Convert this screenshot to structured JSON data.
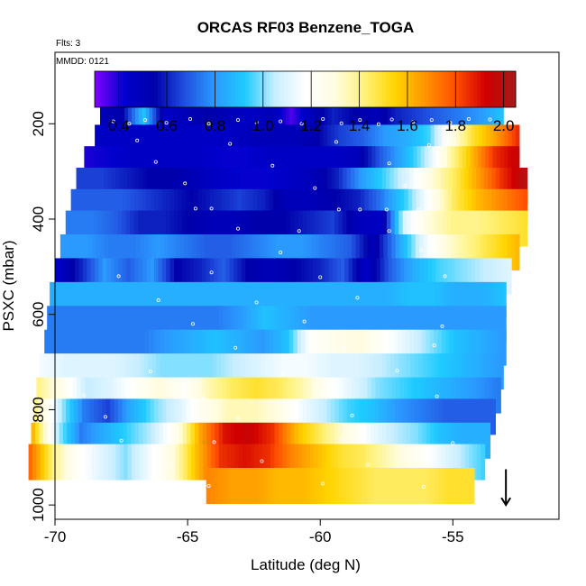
{
  "chart_data": {
    "type": "heatmap",
    "title": "ORCAS RF03 Benzene_TOGA",
    "subtitle_flts": "Flts: 3",
    "subtitle_date": "MMDD: 0121",
    "xlabel": "Latitude (deg N)",
    "ylabel": "PSXC (mbar)",
    "xlim": [
      -70,
      -51
    ],
    "ylim": [
      1030,
      50
    ],
    "x_ticks": [
      -70,
      -65,
      -60,
      -55
    ],
    "y_ticks": [
      200,
      400,
      600,
      800,
      1000
    ],
    "colorbar": {
      "range": [
        0.3,
        2.05
      ],
      "ticks": [
        0.4,
        0.6,
        0.8,
        1.0,
        1.2,
        1.4,
        1.6,
        1.8,
        2.0
      ],
      "tick_labels": [
        "0.4",
        "0.6",
        "0.8",
        "1.0",
        "1.2",
        "1.4",
        "1.6",
        "1.8",
        "2.0"
      ],
      "colors": [
        "#8000ff",
        "#0000cc",
        "#0000aa",
        "#2050e0",
        "#2b9aff",
        "#1ecbff",
        "#c8eeff",
        "#ffffff",
        "#fffce0",
        "#fff176",
        "#ffd400",
        "#ff9400",
        "#ff4f00",
        "#d10000",
        "#a41a1a"
      ]
    },
    "rows": [
      {
        "p": 190,
        "x0": -68.3,
        "x1": -53.1,
        "values": [
          0.5,
          0.55,
          0.9,
          0.45,
          0.5,
          0.55,
          0.5,
          0.45,
          0.5,
          0.35,
          0.5,
          0.6,
          0.55,
          0.5,
          0.6,
          0.65,
          0.7,
          0.75,
          0.8,
          0.9
        ]
      },
      {
        "p": 240,
        "x0": -68.5,
        "x1": -52.5,
        "values": [
          0.45,
          0.45,
          0.45,
          0.45,
          0.45,
          0.45,
          0.45,
          0.5,
          0.5,
          0.5,
          0.55,
          0.65,
          0.7,
          0.8,
          0.85,
          0.95,
          1.25,
          1.5,
          1.65,
          1.85
        ]
      },
      {
        "p": 285,
        "x0": -68.9,
        "x1": -52.5,
        "values": [
          0.4,
          0.42,
          0.45,
          0.45,
          0.45,
          0.45,
          0.42,
          0.42,
          0.45,
          0.45,
          0.45,
          0.45,
          0.5,
          0.7,
          0.85,
          1.05,
          1.35,
          1.6,
          1.85,
          1.95
        ]
      },
      {
        "p": 330,
        "x0": -69.2,
        "x1": -52.2,
        "values": [
          0.65,
          0.65,
          0.6,
          0.55,
          0.55,
          0.5,
          0.45,
          0.42,
          0.42,
          0.45,
          0.5,
          0.6,
          0.8,
          0.95,
          1.1,
          1.3,
          1.45,
          1.65,
          1.85,
          2.0
        ]
      },
      {
        "p": 375,
        "x0": -69.4,
        "x1": -52.2,
        "values": [
          0.7,
          0.7,
          0.7,
          0.65,
          0.6,
          0.55,
          0.6,
          0.65,
          0.6,
          0.5,
          0.5,
          0.55,
          0.6,
          0.75,
          0.95,
          1.2,
          1.45,
          1.6,
          1.7,
          1.8
        ]
      },
      {
        "p": 420,
        "x0": -69.6,
        "x1": -52.2,
        "values": [
          0.75,
          0.75,
          0.7,
          0.6,
          0.6,
          0.55,
          0.5,
          0.5,
          0.55,
          0.55,
          0.6,
          0.65,
          0.5,
          0.45,
          1.1,
          1.3,
          1.4,
          1.4,
          1.45,
          1.5
        ]
      },
      {
        "p": 470,
        "x0": -69.8,
        "x1": -52.5,
        "values": [
          0.8,
          0.8,
          0.75,
          0.75,
          0.8,
          0.75,
          0.7,
          0.7,
          0.75,
          0.8,
          0.8,
          0.75,
          0.7,
          0.5,
          0.8,
          1.1,
          1.3,
          1.4,
          1.5,
          1.6
        ]
      },
      {
        "p": 520,
        "x0": -70.0,
        "x1": -52.8,
        "values": [
          0.45,
          0.6,
          0.8,
          0.7,
          0.8,
          0.55,
          0.6,
          0.7,
          0.55,
          0.5,
          0.55,
          0.6,
          0.7,
          0.45,
          0.7,
          0.85,
          0.95,
          1.0,
          1.05,
          1.1
        ]
      },
      {
        "p": 570,
        "x0": -70.2,
        "x1": -53.0,
        "values": [
          0.85,
          0.85,
          0.85,
          0.85,
          0.85,
          0.85,
          0.85,
          0.85,
          0.85,
          0.85,
          0.85,
          0.85,
          0.85,
          0.85,
          0.85,
          0.9,
          0.9,
          0.85,
          0.85,
          0.9
        ]
      },
      {
        "p": 620,
        "x0": -70.3,
        "x1": -53.0,
        "values": [
          0.75,
          0.75,
          0.75,
          0.75,
          0.75,
          0.75,
          0.75,
          0.75,
          0.8,
          0.9,
          0.85,
          0.8,
          0.8,
          0.8,
          0.8,
          0.8,
          0.8,
          0.8,
          0.8,
          0.8
        ]
      },
      {
        "p": 670,
        "x0": -70.4,
        "x1": -53.0,
        "values": [
          0.75,
          0.75,
          0.75,
          0.75,
          0.75,
          0.8,
          0.85,
          0.9,
          0.85,
          0.8,
          0.9,
          1.2,
          1.25,
          1.3,
          1.2,
          1.1,
          1.0,
          0.9,
          0.85,
          0.8
        ]
      },
      {
        "p": 720,
        "x0": -70.6,
        "x1": -53.1,
        "values": [
          1.15,
          1.1,
          1.1,
          1.1,
          1.05,
          1.0,
          1.0,
          1.0,
          1.05,
          1.1,
          1.15,
          1.15,
          1.1,
          1.1,
          1.05,
          1.0,
          0.95,
          0.9,
          0.85,
          0.8
        ]
      },
      {
        "p": 770,
        "x0": -70.7,
        "x1": -53.2,
        "values": [
          1.4,
          1.25,
          1.05,
          1.1,
          1.2,
          1.3,
          1.2,
          1.35,
          1.45,
          1.5,
          1.45,
          1.35,
          1.2,
          1.1,
          1.0,
          0.95,
          0.9,
          0.85,
          0.8,
          0.75
        ]
      },
      {
        "p": 815,
        "x0": -70.8,
        "x1": -53.4,
        "values": [
          1.4,
          1.05,
          0.75,
          0.65,
          0.85,
          1.0,
          1.1,
          1.25,
          1.35,
          1.35,
          1.3,
          1.15,
          1.05,
          0.95,
          0.9,
          0.8,
          0.75,
          0.7,
          0.7,
          0.7
        ]
      },
      {
        "p": 865,
        "x0": -70.9,
        "x1": -53.6,
        "values": [
          1.6,
          1.05,
          0.75,
          0.85,
          0.95,
          1.05,
          1.25,
          1.65,
          1.9,
          1.95,
          1.85,
          1.6,
          1.45,
          1.3,
          1.15,
          1.05,
          1.0,
          0.9,
          0.85,
          0.85
        ]
      },
      {
        "p": 910,
        "x0": -71.0,
        "x1": -53.8,
        "values": [
          1.75,
          1.4,
          1.2,
          1.1,
          1.0,
          1.15,
          1.3,
          1.6,
          1.85,
          1.9,
          1.85,
          1.7,
          1.6,
          1.5,
          1.45,
          1.35,
          1.25,
          1.15,
          1.05,
          0.95
        ]
      },
      {
        "p": 960,
        "x0": -64.3,
        "x1": -54.2,
        "values": [
          1.7,
          1.65,
          1.65,
          1.6,
          1.6,
          1.55,
          1.5,
          1.45,
          1.45,
          1.45,
          1.5,
          1.5
        ]
      }
    ],
    "dots": [
      [
        -67.8,
        195
      ],
      [
        -67.2,
        200
      ],
      [
        -66.6,
        192
      ],
      [
        -65.8,
        198
      ],
      [
        -64.9,
        190
      ],
      [
        -64.2,
        200
      ],
      [
        -63.1,
        192
      ],
      [
        -62.4,
        197
      ],
      [
        -61.5,
        195
      ],
      [
        -60.7,
        200
      ],
      [
        -59.9,
        190
      ],
      [
        -59.2,
        199
      ],
      [
        -58.5,
        192
      ],
      [
        -57.8,
        201
      ],
      [
        -57.3,
        191
      ],
      [
        -56.5,
        196
      ],
      [
        -55.8,
        192
      ],
      [
        -55.1,
        198
      ],
      [
        -54.4,
        190
      ],
      [
        -53.6,
        191
      ],
      [
        -66.9,
        235
      ],
      [
        -63.4,
        242
      ],
      [
        -59.4,
        238
      ],
      [
        -55.9,
        245
      ],
      [
        -66.2,
        280
      ],
      [
        -61.8,
        288
      ],
      [
        -57.4,
        283
      ],
      [
        -65.1,
        325
      ],
      [
        -60.2,
        335
      ],
      [
        -56.8,
        330
      ],
      [
        -64.7,
        378
      ],
      [
        -64.1,
        378
      ],
      [
        -59.3,
        380
      ],
      [
        -58.5,
        380
      ],
      [
        -57.5,
        380
      ],
      [
        -56.3,
        380
      ],
      [
        -63.1,
        420
      ],
      [
        -60.8,
        425
      ],
      [
        -57.4,
        425
      ],
      [
        -61.5,
        470
      ],
      [
        -56.2,
        465
      ],
      [
        -67.6,
        520
      ],
      [
        -64.1,
        512
      ],
      [
        -60.0,
        522
      ],
      [
        -55.3,
        520
      ],
      [
        -66.1,
        570
      ],
      [
        -62.4,
        575
      ],
      [
        -58.6,
        565
      ],
      [
        -64.8,
        620
      ],
      [
        -60.6,
        615
      ],
      [
        -55.4,
        625
      ],
      [
        -63.2,
        670
      ],
      [
        -59.1,
        672
      ],
      [
        -55.7,
        665
      ],
      [
        -66.4,
        720
      ],
      [
        -61.4,
        725
      ],
      [
        -57.1,
        718
      ],
      [
        -68.9,
        770
      ],
      [
        -64.4,
        775
      ],
      [
        -60.0,
        768
      ],
      [
        -55.6,
        772
      ],
      [
        -68.1,
        815
      ],
      [
        -63.1,
        818
      ],
      [
        -58.8,
        812
      ],
      [
        -67.5,
        865
      ],
      [
        -64.0,
        868
      ],
      [
        -59.2,
        862
      ],
      [
        -55.0,
        870
      ],
      [
        -68.7,
        910
      ],
      [
        -65.8,
        915
      ],
      [
        -62.2,
        908
      ],
      [
        -58.2,
        915
      ],
      [
        -64.2,
        960
      ],
      [
        -59.9,
        955
      ],
      [
        -56.1,
        962
      ]
    ],
    "arrow": {
      "x": -53,
      "p_from": 925,
      "p_to": 1000
    }
  }
}
